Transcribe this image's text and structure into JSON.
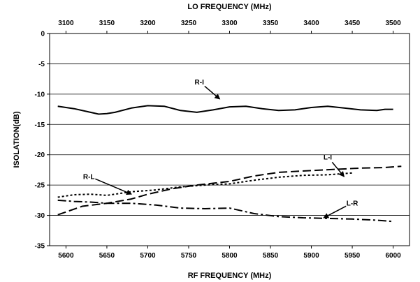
{
  "chart_data": {
    "type": "line",
    "title": "",
    "xlabel": "RF FREQUENCY (MHz)",
    "x2label": "LO FREQUENCY (MHz)",
    "ylabel": "ISOLATION(dB)",
    "xlim": [
      5580,
      6020
    ],
    "x2lim": [
      3080,
      3520
    ],
    "ylim": [
      -35,
      0
    ],
    "xticks": [
      5600,
      5650,
      5700,
      5750,
      5800,
      5850,
      5900,
      5950,
      6000
    ],
    "x2ticks": [
      3100,
      3150,
      3200,
      3250,
      3300,
      3350,
      3400,
      3450,
      3500
    ],
    "yticks": [
      0,
      -5,
      -10,
      -15,
      -20,
      -25,
      -30,
      -35
    ],
    "grid": "horizontal",
    "legend": "none",
    "series": [
      {
        "name": "R-I",
        "style": "solid",
        "x": [
          5590,
          5610,
          5630,
          5640,
          5650,
          5660,
          5680,
          5700,
          5720,
          5740,
          5760,
          5780,
          5800,
          5820,
          5840,
          5860,
          5880,
          5900,
          5920,
          5940,
          5960,
          5980,
          5990,
          6000
        ],
        "y": [
          -12,
          -12.4,
          -13,
          -13.3,
          -13.2,
          -13,
          -12.3,
          -11.9,
          -12,
          -12.7,
          -13,
          -12.6,
          -12.1,
          -12,
          -12.4,
          -12.7,
          -12.6,
          -12.2,
          -12,
          -12.3,
          -12.6,
          -12.7,
          -12.5,
          -12.5
        ]
      },
      {
        "name": "L-I",
        "style": "dashed",
        "x": [
          5590,
          5620,
          5650,
          5680,
          5700,
          5730,
          5760,
          5800,
          5830,
          5860,
          5900,
          5930,
          5960,
          5990,
          6010
        ],
        "y": [
          -29.9,
          -28.5,
          -28,
          -27.3,
          -26.5,
          -25.6,
          -25,
          -24.4,
          -23.5,
          -22.9,
          -22.6,
          -22.4,
          -22.2,
          -22.1,
          -21.9
        ]
      },
      {
        "name": "R-L",
        "style": "dotted",
        "x": [
          5590,
          5610,
          5630,
          5650,
          5680,
          5710,
          5740,
          5770,
          5800,
          5830,
          5860,
          5890,
          5920,
          5950
        ],
        "y": [
          -27,
          -26.6,
          -26.5,
          -26.7,
          -26.1,
          -25.8,
          -25.3,
          -25,
          -24.8,
          -24.2,
          -23.7,
          -23.4,
          -23.3,
          -23
        ]
      },
      {
        "name": "L-R",
        "style": "dash-dot",
        "x": [
          5590,
          5610,
          5630,
          5650,
          5680,
          5710,
          5740,
          5770,
          5800,
          5830,
          5860,
          5890,
          5920,
          5950,
          5980,
          6000
        ],
        "y": [
          -27.5,
          -27.7,
          -27.8,
          -28,
          -28,
          -28.3,
          -28.8,
          -28.9,
          -28.8,
          -29.7,
          -30.2,
          -30.4,
          -30.5,
          -30.6,
          -30.8,
          -31
        ]
      }
    ],
    "annotations": [
      {
        "text": "R-I",
        "x": 5763,
        "y": -8.4,
        "target": [
          5788,
          -10.8
        ]
      },
      {
        "text": "L-I",
        "x": 5920,
        "y": -20.8,
        "target": [
          5940,
          -23.6
        ]
      },
      {
        "text": "R-L",
        "x": 5628,
        "y": -24,
        "target": [
          5680,
          -26.5
        ]
      },
      {
        "text": "L-R",
        "x": 5950,
        "y": -28.4,
        "target": [
          5915,
          -30.4
        ]
      }
    ]
  }
}
